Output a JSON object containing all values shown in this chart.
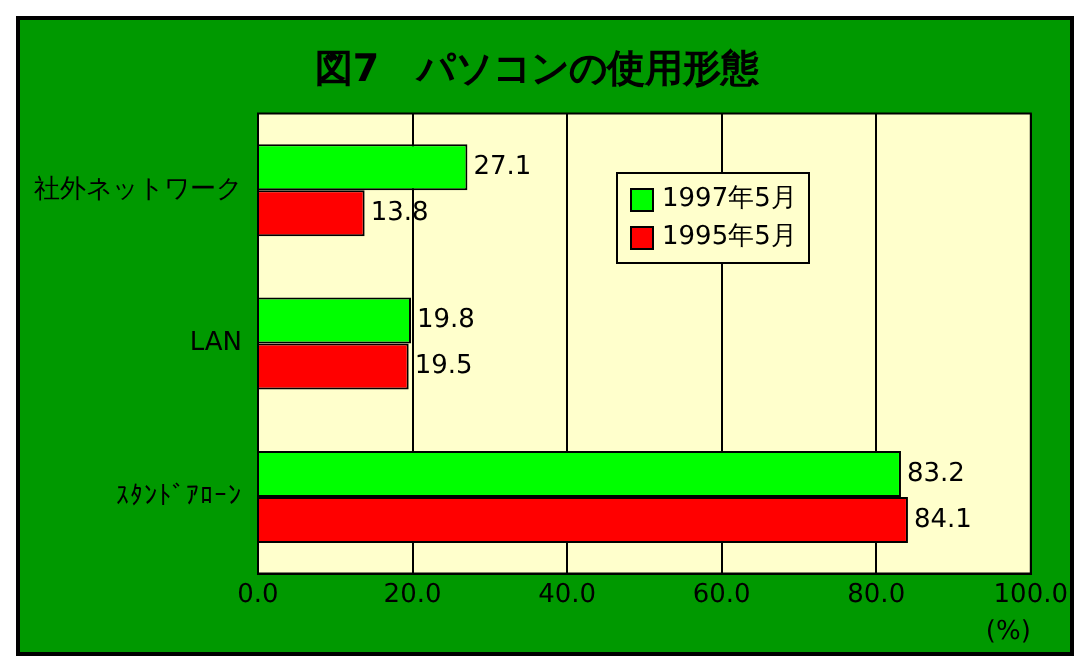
{
  "chart_data": {
    "type": "bar",
    "orientation": "horizontal",
    "title": "図7　パソコンの使用形態",
    "xlabel": "(%)",
    "categories": [
      "社外ネットワーク",
      "LAN",
      "ｽﾀﾝﾄﾞｱﾛｰﾝ"
    ],
    "series": [
      {
        "name": "1997年5月",
        "color": "#00ff00",
        "values": [
          27.1,
          19.8,
          83.2
        ]
      },
      {
        "name": "1995年5月",
        "color": "#ff0000",
        "values": [
          13.8,
          19.5,
          84.1
        ]
      }
    ],
    "xlim": [
      0,
      100
    ],
    "xticks": [
      {
        "value": 0,
        "label": "0.0"
      },
      {
        "value": 20,
        "label": "20.0"
      },
      {
        "value": 40,
        "label": "40.0"
      },
      {
        "value": 60,
        "label": "60.0"
      },
      {
        "value": 80,
        "label": "80.0"
      },
      {
        "value": 100,
        "label": "100.0"
      }
    ],
    "grid": "x",
    "legend": "top right",
    "data_labels": true
  }
}
